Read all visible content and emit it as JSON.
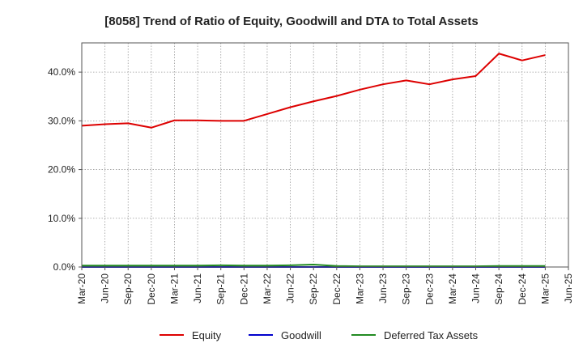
{
  "chart_data": {
    "type": "line",
    "title": "[8058]  Trend of Ratio of Equity, Goodwill and DTA to Total Assets",
    "xlabel": "",
    "ylabel": "",
    "ylim": [
      0,
      46
    ],
    "yticks": [
      0,
      10,
      20,
      30,
      40
    ],
    "ytick_labels": [
      "0.0%",
      "10.0%",
      "20.0%",
      "30.0%",
      "40.0%"
    ],
    "xtick_labels": [
      "Mar-20",
      "Jun-20",
      "Sep-20",
      "Dec-20",
      "Mar-21",
      "Jun-21",
      "Sep-21",
      "Dec-21",
      "Mar-22",
      "Jun-22",
      "Sep-22",
      "Dec-22",
      "Mar-23",
      "Jun-23",
      "Sep-23",
      "Dec-23",
      "Mar-24",
      "Jun-24",
      "Sep-24",
      "Dec-24",
      "Mar-25",
      "Jun-25"
    ],
    "grid": true,
    "legend_position": "bottom",
    "series": [
      {
        "name": "Equity",
        "color": "#dd0000",
        "values": [
          29.0,
          29.3,
          29.5,
          28.6,
          30.1,
          30.1,
          30.0,
          30.0,
          31.4,
          32.8,
          34.0,
          35.1,
          36.4,
          37.5,
          38.3,
          37.5,
          38.5,
          39.2,
          43.8,
          42.4,
          43.5,
          null
        ]
      },
      {
        "name": "Goodwill",
        "color": "#0000cc",
        "values": [
          0,
          0,
          0,
          0,
          0,
          0,
          0,
          0,
          0,
          0,
          0,
          0,
          0,
          0,
          0,
          0,
          0,
          0,
          0,
          0,
          0,
          null
        ]
      },
      {
        "name": "Deferred Tax Assets",
        "color": "#228b22",
        "values": [
          0.3,
          0.3,
          0.3,
          0.3,
          0.3,
          0.3,
          0.35,
          0.3,
          0.3,
          0.35,
          0.5,
          0.2,
          0.15,
          0.15,
          0.15,
          0.15,
          0.15,
          0.15,
          0.2,
          0.2,
          0.2,
          null
        ]
      }
    ]
  }
}
